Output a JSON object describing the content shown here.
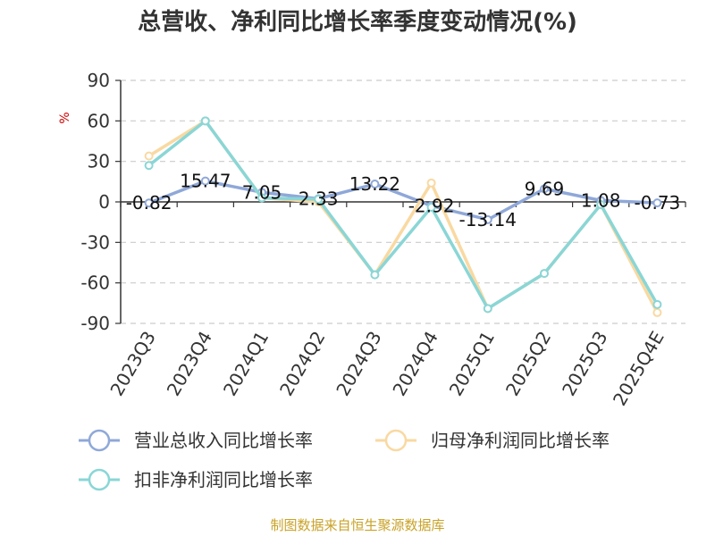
{
  "chart_data": {
    "type": "line",
    "title": "总营收、净利同比增长率季度变动情况(%)",
    "ylabel": "%",
    "ylim": [
      -90,
      90
    ],
    "y_ticks": [
      90,
      60,
      30,
      0,
      -30,
      -60,
      -90
    ],
    "categories": [
      "2023Q3",
      "2023Q4",
      "2024Q1",
      "2024Q2",
      "2024Q3",
      "2024Q4",
      "2025Q1",
      "2025Q2",
      "2025Q3",
      "2025Q4E"
    ],
    "grid": true,
    "legend_position": "bottom",
    "series": [
      {
        "name": "营业总收入同比增长率",
        "color": "#8fa8d8",
        "values": [
          -0.82,
          15.47,
          7.05,
          2.33,
          13.22,
          -2.92,
          -13.14,
          9.69,
          1.08,
          -0.73
        ],
        "labels": [
          "-0.82",
          "15.47",
          "7.05",
          "2.33",
          "13.22",
          "-2.92",
          "-13.14",
          "9.69",
          "1.08",
          "-0.73"
        ]
      },
      {
        "name": "归母净利润同比增长率",
        "color": "#f9d9a2",
        "values": [
          34,
          60,
          3,
          0,
          -54,
          14,
          -79,
          -53,
          -2,
          -82
        ]
      },
      {
        "name": "扣非净利润同比增长率",
        "color": "#8ad6d6",
        "values": [
          27,
          60,
          3,
          2,
          -54,
          -4,
          -79,
          -53,
          -2,
          -76
        ]
      }
    ]
  },
  "source": "制图数据来自恒生聚源数据库"
}
